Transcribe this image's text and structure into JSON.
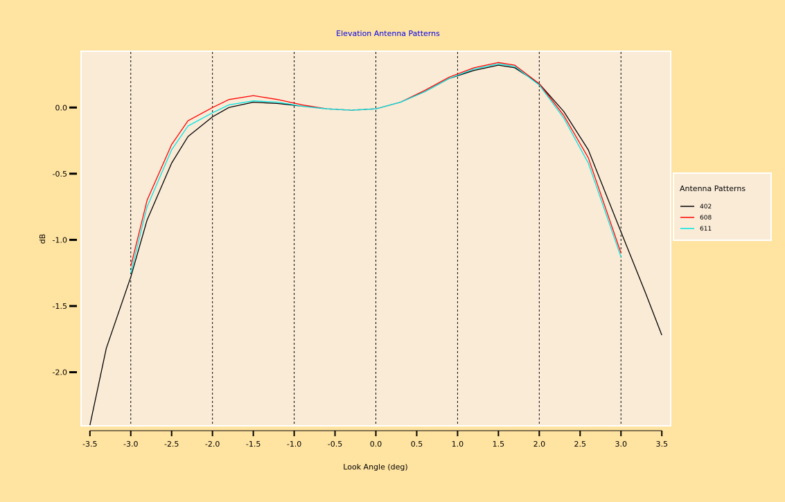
{
  "chart_data": {
    "type": "line",
    "title": "Elevation Antenna Patterns",
    "xlabel": "Look Angle (deg)",
    "ylabel": "dB",
    "xlim": [
      -3.6,
      3.6
    ],
    "ylim": [
      -2.4,
      0.42
    ],
    "xticks": [
      -3.5,
      -3.0,
      -2.5,
      -2.0,
      -1.5,
      -1.0,
      -0.5,
      0.0,
      0.5,
      1.0,
      1.5,
      2.0,
      2.5,
      3.0,
      3.5
    ],
    "xtick_labels": [
      "-3.5",
      "-3.0",
      "-2.5",
      "-2.0",
      "-1.5",
      "-1.0",
      "-0.5",
      "0.0",
      "0.5",
      "1.0",
      "1.5",
      "2.0",
      "2.5",
      "3.0",
      "3.5"
    ],
    "yticks": [
      0.0,
      -0.5,
      -1.0,
      -1.5,
      -2.0
    ],
    "ytick_labels": [
      "0.0",
      "-0.5",
      "-1.0",
      "-1.5",
      "-2.0"
    ],
    "vlines": [
      -3.0,
      -2.0,
      -1.0,
      0.0,
      1.0,
      2.0,
      3.0
    ],
    "legend": {
      "title": "Antenna Patterns",
      "placement": "right"
    },
    "series": [
      {
        "name": "402",
        "color": "#000000",
        "x": [
          -3.5,
          -3.3,
          -3.0,
          -2.8,
          -2.5,
          -2.3,
          -2.0,
          -1.8,
          -1.5,
          -1.2,
          -0.9,
          -0.6,
          -0.3,
          0.0,
          0.3,
          0.6,
          0.9,
          1.2,
          1.5,
          1.7,
          2.0,
          2.3,
          2.6,
          3.0,
          3.3,
          3.5
        ],
        "y": [
          -2.4,
          -1.82,
          -1.28,
          -0.85,
          -0.42,
          -0.22,
          -0.07,
          0.0,
          0.04,
          0.03,
          0.01,
          -0.01,
          -0.02,
          -0.01,
          0.04,
          0.12,
          0.22,
          0.28,
          0.32,
          0.3,
          0.18,
          -0.03,
          -0.32,
          -0.94,
          -1.4,
          -1.72
        ]
      },
      {
        "name": "608",
        "color": "#ff0000",
        "x": [
          -3.0,
          -2.8,
          -2.5,
          -2.3,
          -2.0,
          -1.8,
          -1.5,
          -1.2,
          -0.9,
          -0.6,
          -0.3,
          0.0,
          0.3,
          0.6,
          0.9,
          1.2,
          1.5,
          1.7,
          2.0,
          2.3,
          2.6,
          3.0
        ],
        "y": [
          -1.2,
          -0.7,
          -0.28,
          -0.1,
          0.0,
          0.06,
          0.09,
          0.06,
          0.02,
          -0.01,
          -0.02,
          -0.01,
          0.04,
          0.13,
          0.23,
          0.3,
          0.34,
          0.32,
          0.18,
          -0.06,
          -0.38,
          -1.1
        ]
      },
      {
        "name": "611",
        "color": "#00e5e5",
        "x": [
          -3.0,
          -2.8,
          -2.5,
          -2.3,
          -2.0,
          -1.8,
          -1.5,
          -1.2,
          -0.9,
          -0.6,
          -0.3,
          0.0,
          0.3,
          0.6,
          0.9,
          1.2,
          1.5,
          1.7,
          2.0,
          2.3,
          2.6,
          3.0
        ],
        "y": [
          -1.25,
          -0.75,
          -0.32,
          -0.14,
          -0.04,
          0.02,
          0.05,
          0.04,
          0.01,
          -0.01,
          -0.02,
          -0.01,
          0.04,
          0.12,
          0.22,
          0.29,
          0.33,
          0.31,
          0.17,
          -0.08,
          -0.42,
          -1.13
        ]
      }
    ]
  }
}
